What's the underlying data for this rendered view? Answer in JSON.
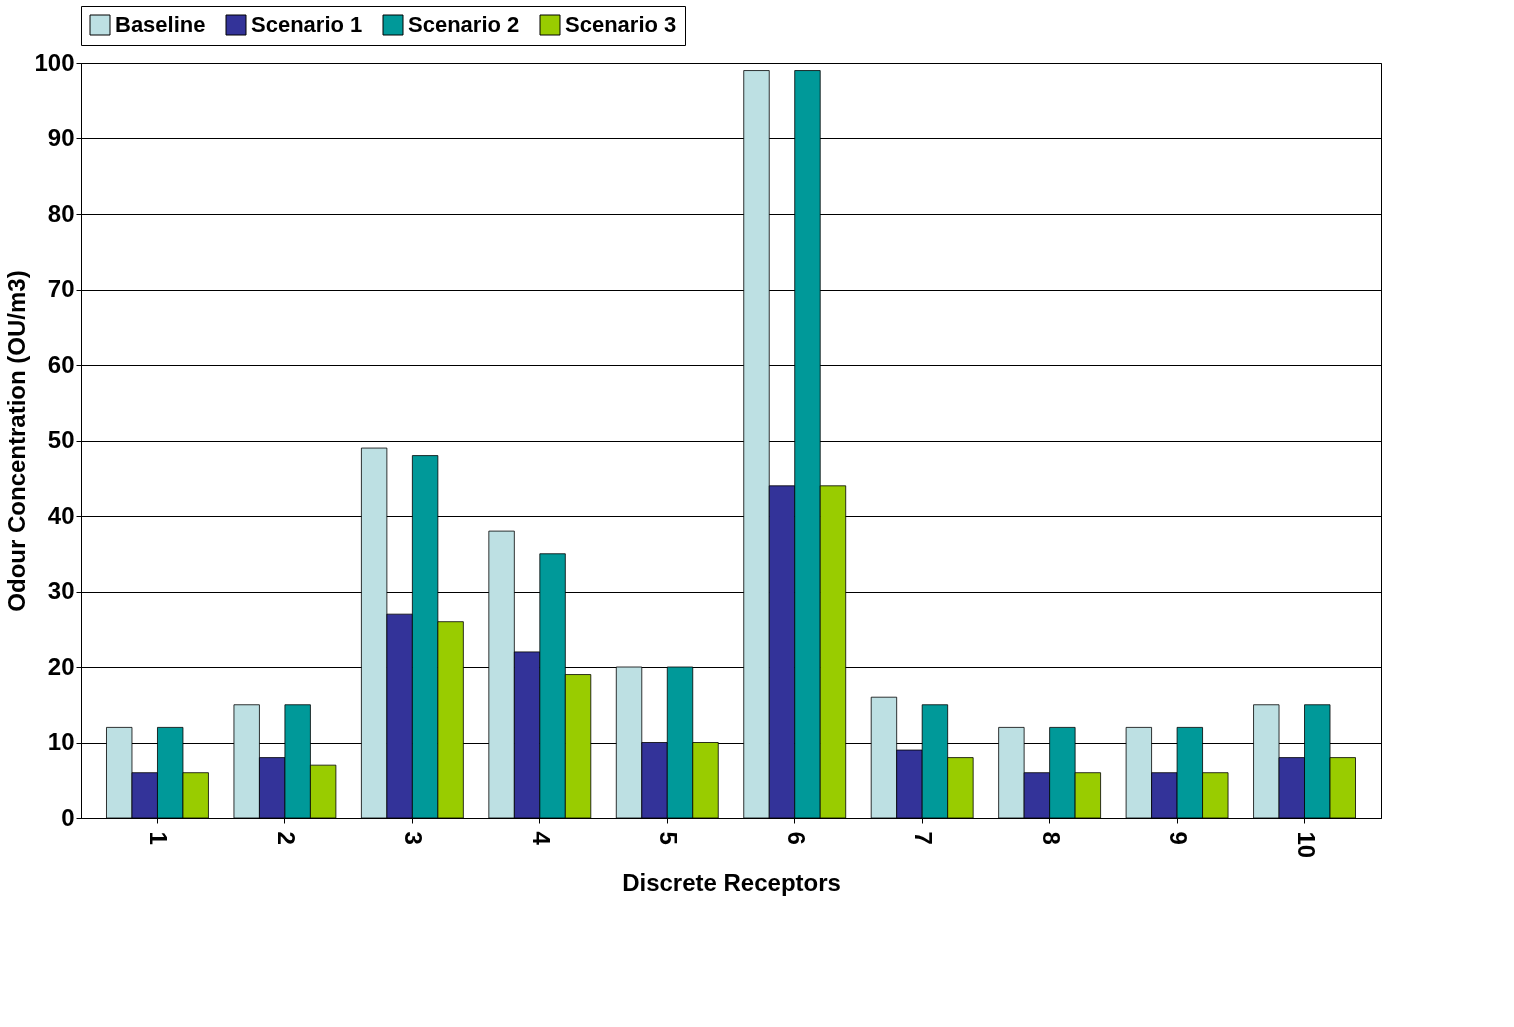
{
  "chart_data": {
    "type": "bar",
    "xlabel": "Discrete Receptors",
    "ylabel": "Odour Concentration (OU/m3)",
    "categories": [
      "1",
      "2",
      "3",
      "4",
      "5",
      "6",
      "7",
      "8",
      "9",
      "10"
    ],
    "series": [
      {
        "name": "Baseline",
        "color": "#bde0e3",
        "values": [
          12,
          15,
          49,
          38,
          20,
          99,
          16,
          12,
          12,
          15
        ]
      },
      {
        "name": "Scenario 1",
        "color": "#333399",
        "values": [
          6,
          8,
          27,
          22,
          10,
          44,
          9,
          6,
          6,
          8
        ]
      },
      {
        "name": "Scenario 2",
        "color": "#009999",
        "values": [
          12,
          15,
          48,
          35,
          20,
          99,
          15,
          12,
          12,
          15
        ]
      },
      {
        "name": "Scenario 3",
        "color": "#99cc00",
        "values": [
          6,
          7,
          26,
          19,
          10,
          44,
          8,
          6,
          6,
          8
        ]
      }
    ],
    "ylim": [
      0,
      100
    ],
    "yticks": [
      0,
      10,
      20,
      30,
      40,
      50,
      60,
      70,
      80,
      90,
      100
    ],
    "grid": "y",
    "legend": "top"
  }
}
